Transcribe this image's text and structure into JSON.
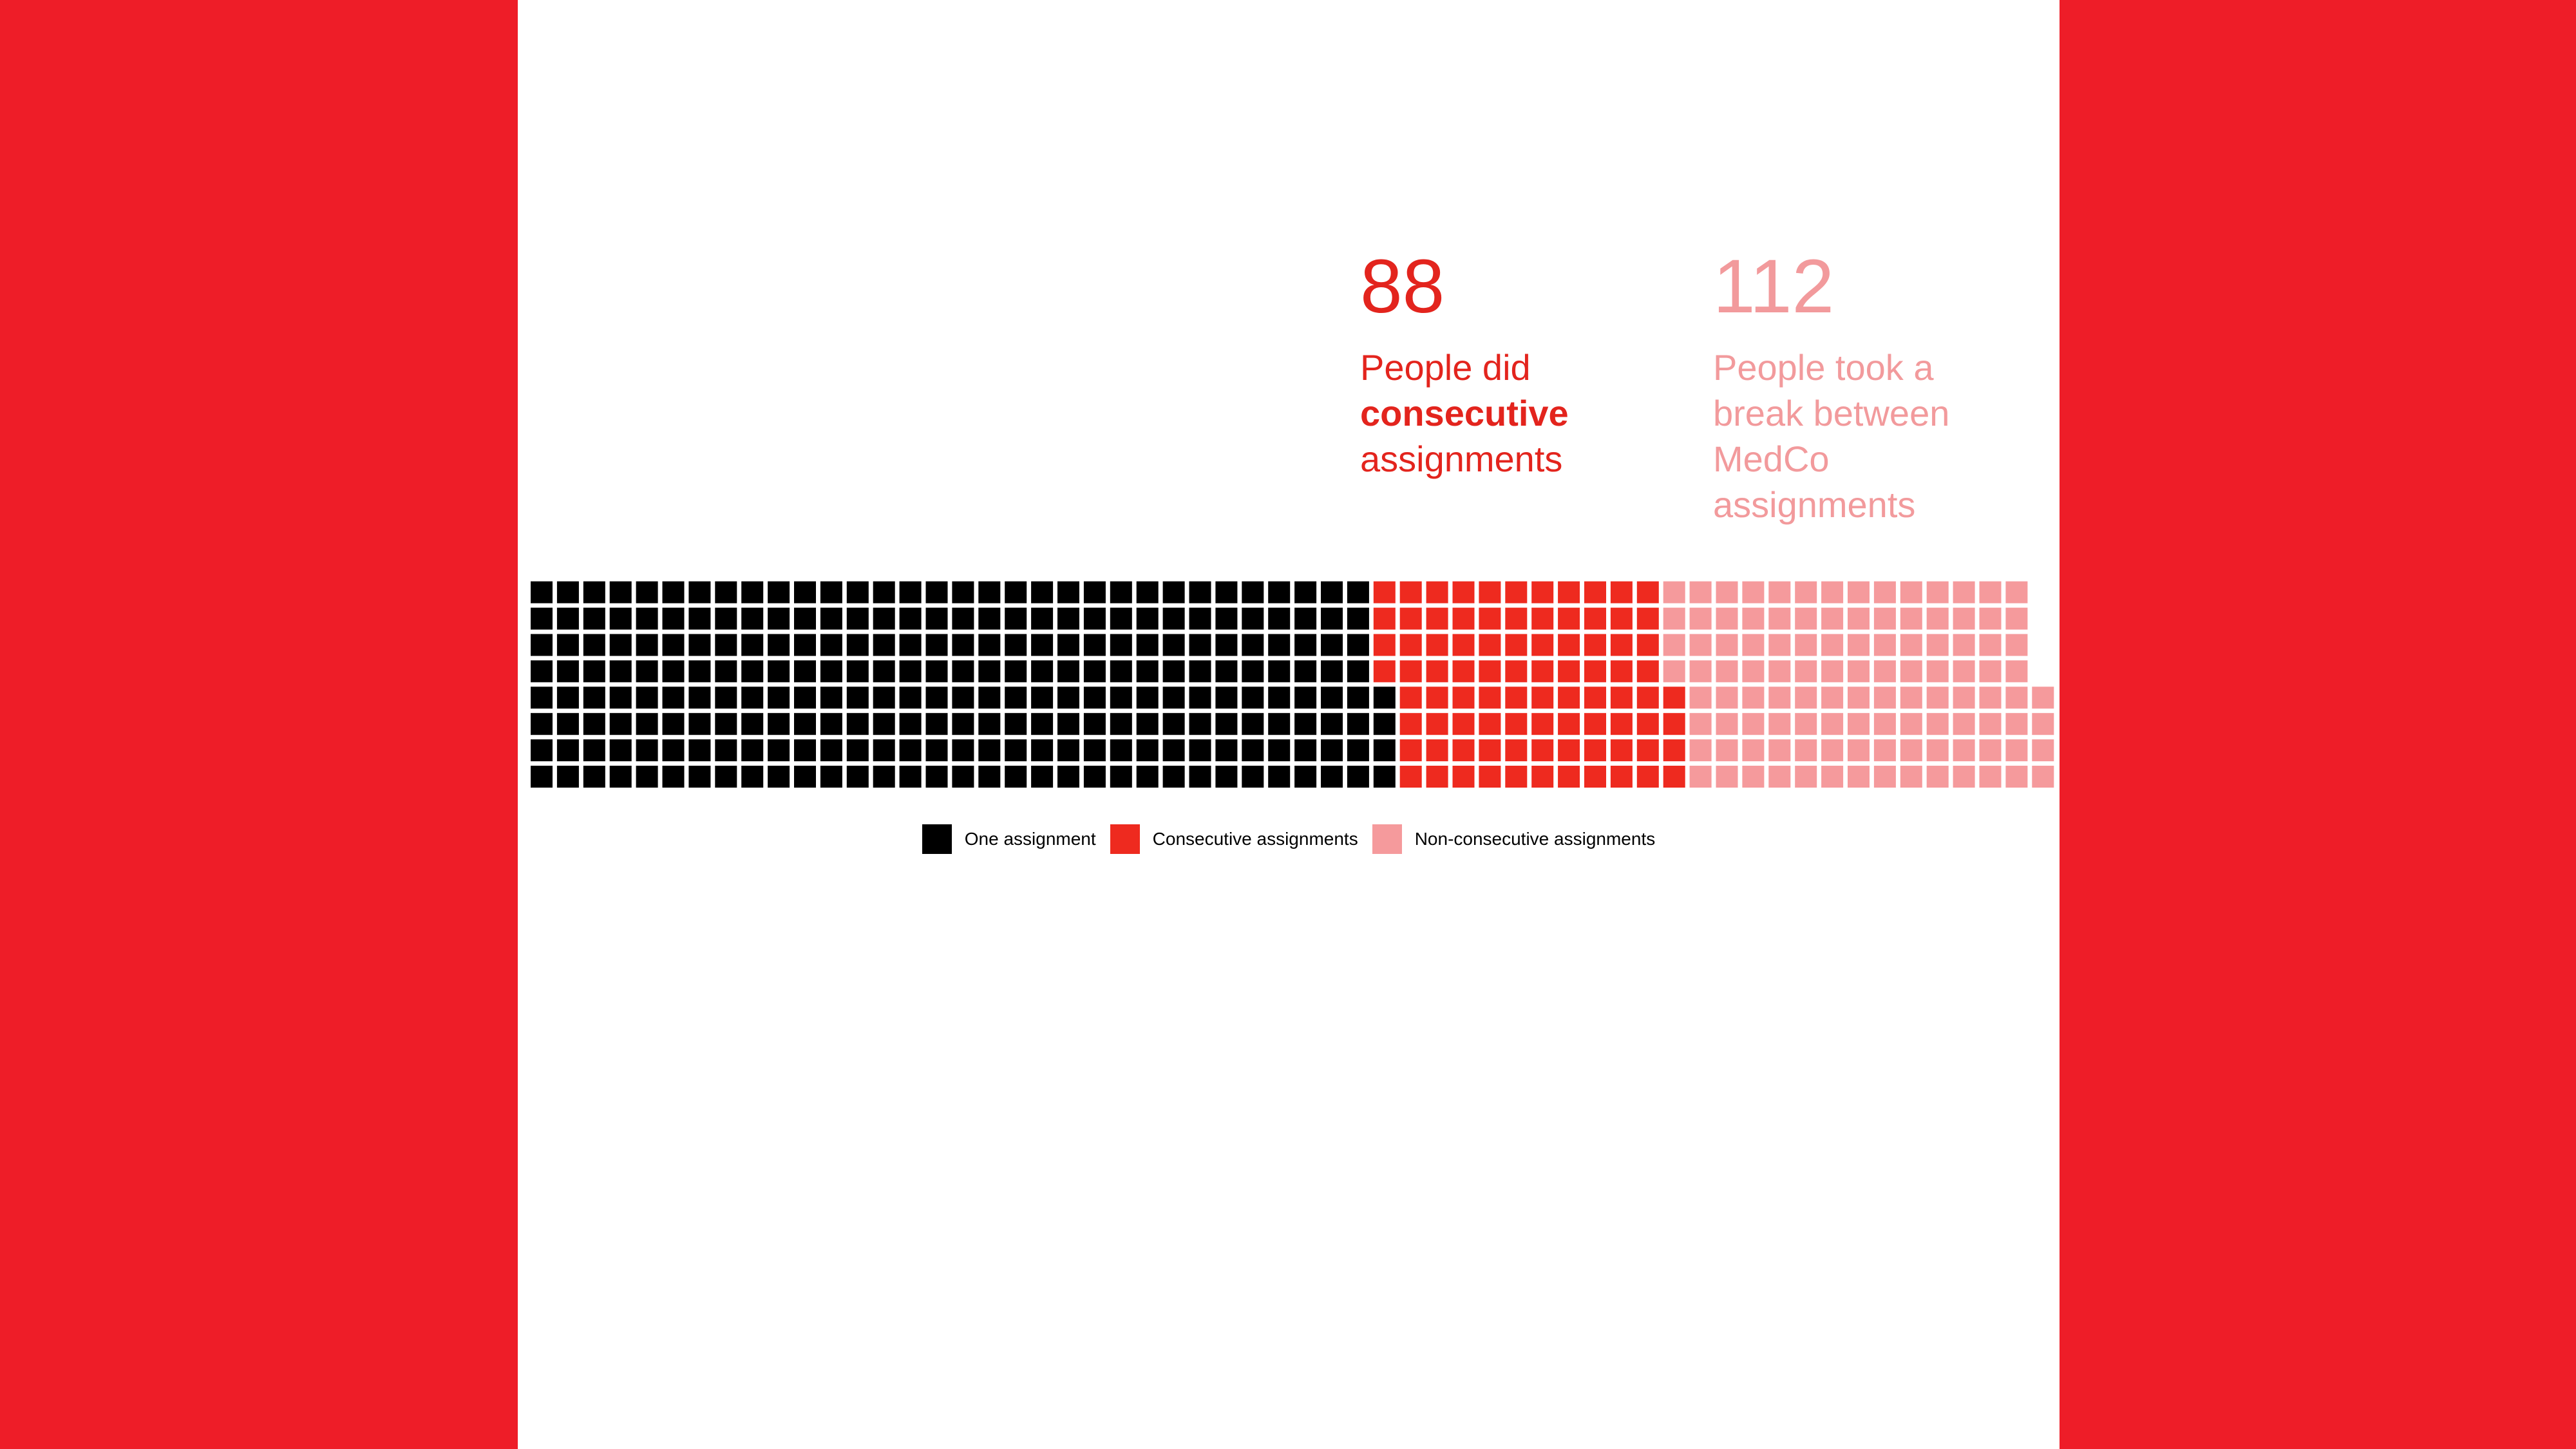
{
  "stats": {
    "consecutive": {
      "number": "88",
      "text_before": "People did ",
      "text_bold": "consecutive",
      "text_after": " assignments"
    },
    "break": {
      "number": "112",
      "text": "People took a break between MedCo assignments"
    }
  },
  "chart_data": {
    "type": "waffle",
    "rows": 8,
    "categories": [
      "One assignment",
      "Consecutive assignments",
      "Non-consecutive assignments"
    ],
    "values": [
      260,
      88,
      112
    ],
    "colors": [
      "#000000",
      "#EE2A1F",
      "#F59A9C"
    ]
  }
}
